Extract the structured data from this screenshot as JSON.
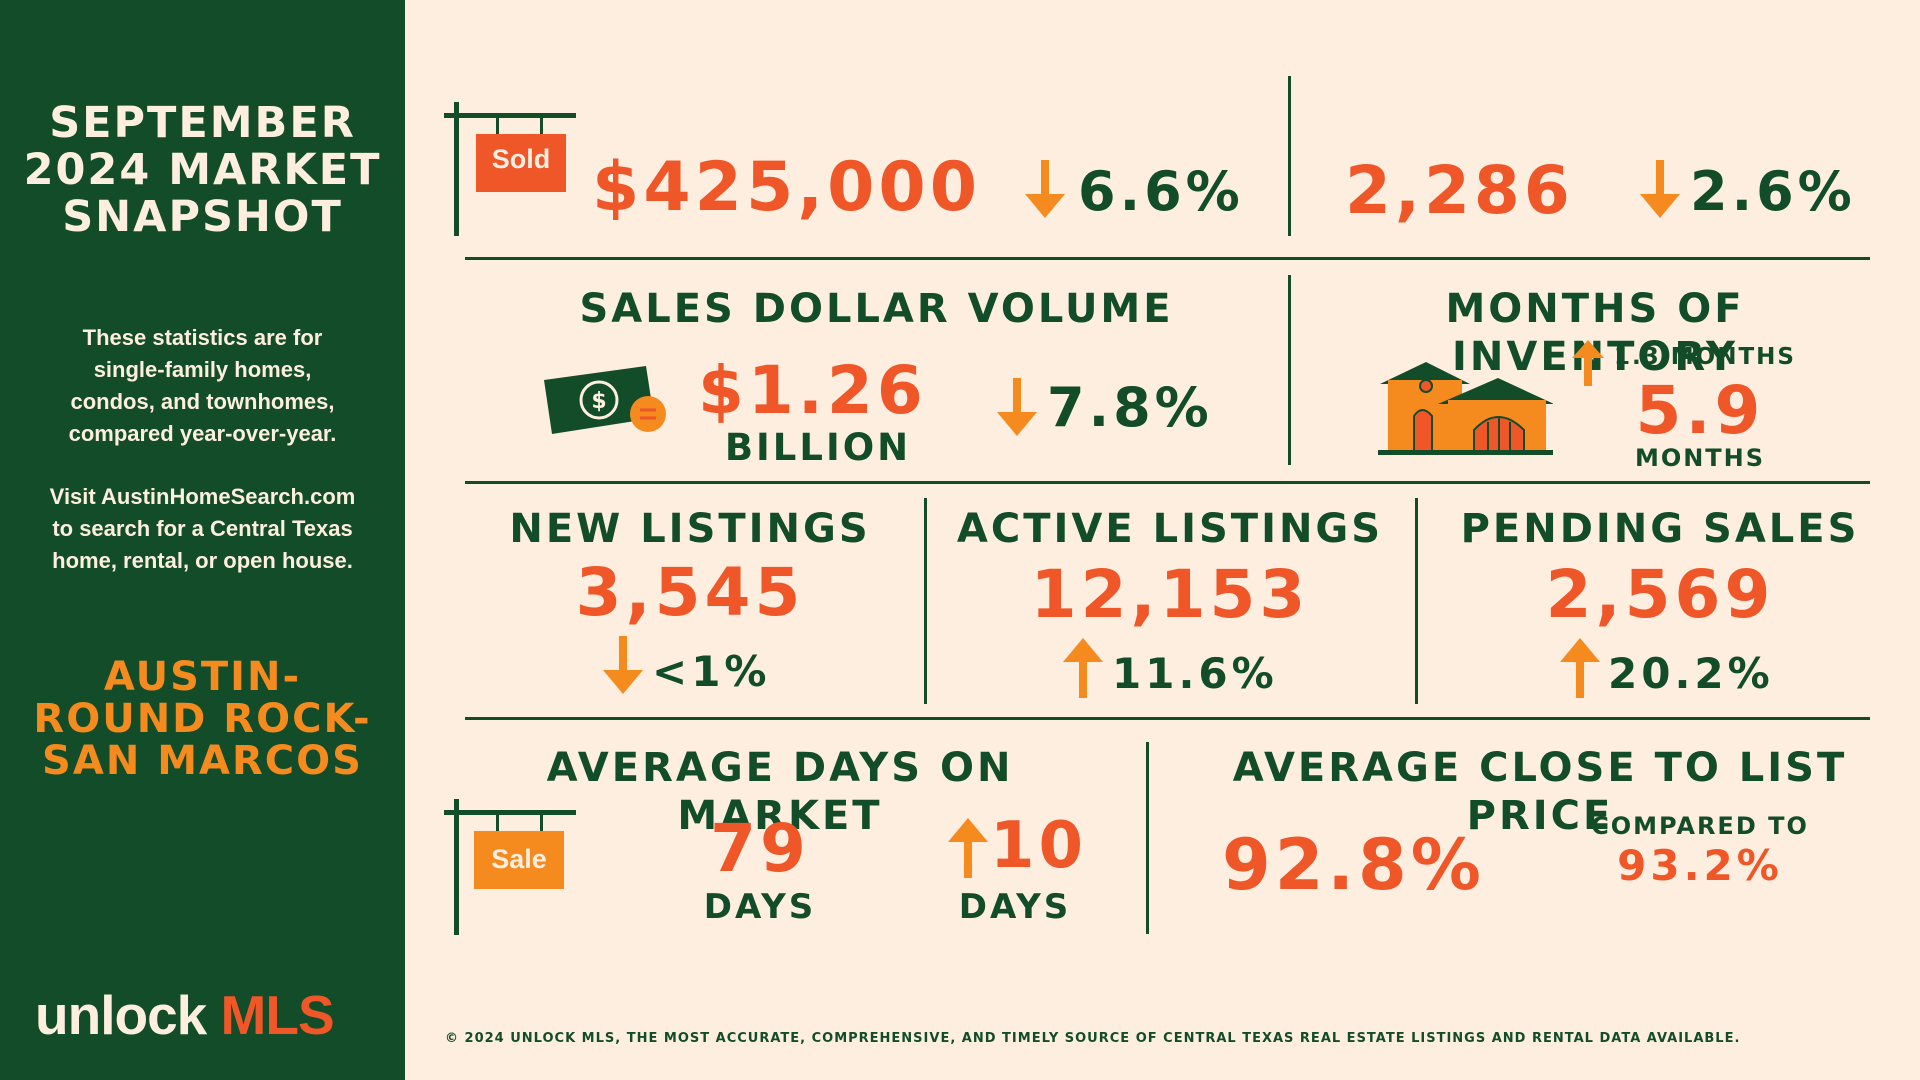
{
  "sidebar": {
    "title_line1": "SEPTEMBER",
    "title_line2": "2024 MARKET",
    "title_line3": "SNAPSHOT",
    "desc_line1": "These statistics are for",
    "desc_line2": "single-family homes,",
    "desc_line3": "condos, and townhomes,",
    "desc_line4": "compared year-over-year.",
    "visit_line1": "Visit AustinHomeSearch.com",
    "visit_line2": "to search for a Central Texas",
    "visit_line3": "home, rental, or open house.",
    "region_line1": "AUSTIN-",
    "region_line2": "ROUND ROCK-",
    "region_line3": "SAN MARCOS",
    "logo_part1": "unlock ",
    "logo_part2": "MLS"
  },
  "median_price": {
    "sign_text": "Sold",
    "value": "$425,000",
    "change": "6.6%",
    "direction": "down"
  },
  "closed_sales": {
    "value": "2,286",
    "change": "2.6%",
    "direction": "down"
  },
  "sales_volume": {
    "label": "SALES DOLLAR VOLUME",
    "value": "$1.26",
    "unit": "BILLION",
    "change": "7.8%",
    "direction": "down",
    "icon": "dollar-bill-icon"
  },
  "inventory": {
    "label": "MONTHS OF INVENTORY",
    "change": "1.3 MONTHS",
    "direction": "up",
    "value": "5.9",
    "unit": "MONTHS",
    "icon": "house-icon"
  },
  "new_listings": {
    "label": "NEW LISTINGS",
    "value": "3,545",
    "change": "<1%",
    "direction": "down"
  },
  "active_listings": {
    "label": "ACTIVE LISTINGS",
    "value": "12,153",
    "change": "11.6%",
    "direction": "up"
  },
  "pending_sales": {
    "label": "PENDING SALES",
    "value": "2,569",
    "change": "20.2%",
    "direction": "up"
  },
  "days_on_market": {
    "label": "AVERAGE DAYS ON MARKET",
    "sign_text": "Sale",
    "value": "79",
    "unit": "DAYS",
    "change": "10",
    "change_unit": "DAYS",
    "direction": "up"
  },
  "close_to_list": {
    "label": "AVERAGE CLOSE TO LIST PRICE",
    "value": "92.8%",
    "compared_label": "COMPARED TO",
    "compared_value": "93.2%"
  },
  "footer": {
    "text": "© 2024 UNLOCK MLS, THE MOST ACCURATE, COMPREHENSIVE, AND TIMELY SOURCE  OF CENTRAL TEXAS REAL ESTATE LISTINGS AND RENTAL DATA AVAILABLE."
  },
  "colors": {
    "green": "#124c28",
    "orange_red": "#ef5628",
    "orange": "#f58a1f",
    "cream": "#fdeee0"
  }
}
